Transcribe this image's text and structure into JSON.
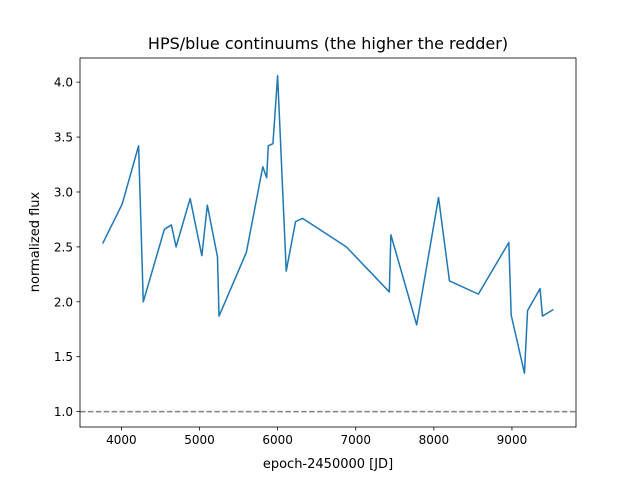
{
  "chart_data": {
    "type": "line",
    "title": "HPS/blue continuums (the higher the redder)",
    "xlabel": "epoch-2450000 [JD]",
    "ylabel": "normalized flux",
    "xlim": [
      3470,
      9820
    ],
    "ylim": [
      0.86,
      4.22
    ],
    "xticks": [
      4000,
      5000,
      6000,
      7000,
      8000,
      9000
    ],
    "yticks": [
      1.0,
      1.5,
      2.0,
      2.5,
      3.0,
      3.5,
      4.0
    ],
    "xtick_labels": [
      "4000",
      "5000",
      "6000",
      "7000",
      "8000",
      "9000"
    ],
    "ytick_labels": [
      "1.0",
      "1.5",
      "2.0",
      "2.5",
      "3.0",
      "3.5",
      "4.0"
    ],
    "grid": false,
    "series": [
      {
        "color": "#1f77b4",
        "x": [
          3760,
          4010,
          4220,
          4280,
          4550,
          4640,
          4700,
          4880,
          5030,
          5100,
          5230,
          5250,
          5600,
          5810,
          5860,
          5880,
          5940,
          6000,
          6110,
          6230,
          6320,
          6880,
          7430,
          7450,
          7780,
          8060,
          8200,
          8570,
          8960,
          8990,
          9160,
          9200,
          9360,
          9390,
          9530
        ],
        "y": [
          2.53,
          2.89,
          3.42,
          2.0,
          2.66,
          2.7,
          2.5,
          2.94,
          2.42,
          2.88,
          2.41,
          1.87,
          2.45,
          3.23,
          3.13,
          3.42,
          3.44,
          4.06,
          2.28,
          2.73,
          2.76,
          2.5,
          2.09,
          2.61,
          1.79,
          2.95,
          2.19,
          2.07,
          2.54,
          1.88,
          1.35,
          1.92,
          2.12,
          1.87,
          1.93
        ]
      }
    ],
    "reference_line": {
      "y": 1.0,
      "style": "dashed",
      "color": "#808080"
    }
  }
}
